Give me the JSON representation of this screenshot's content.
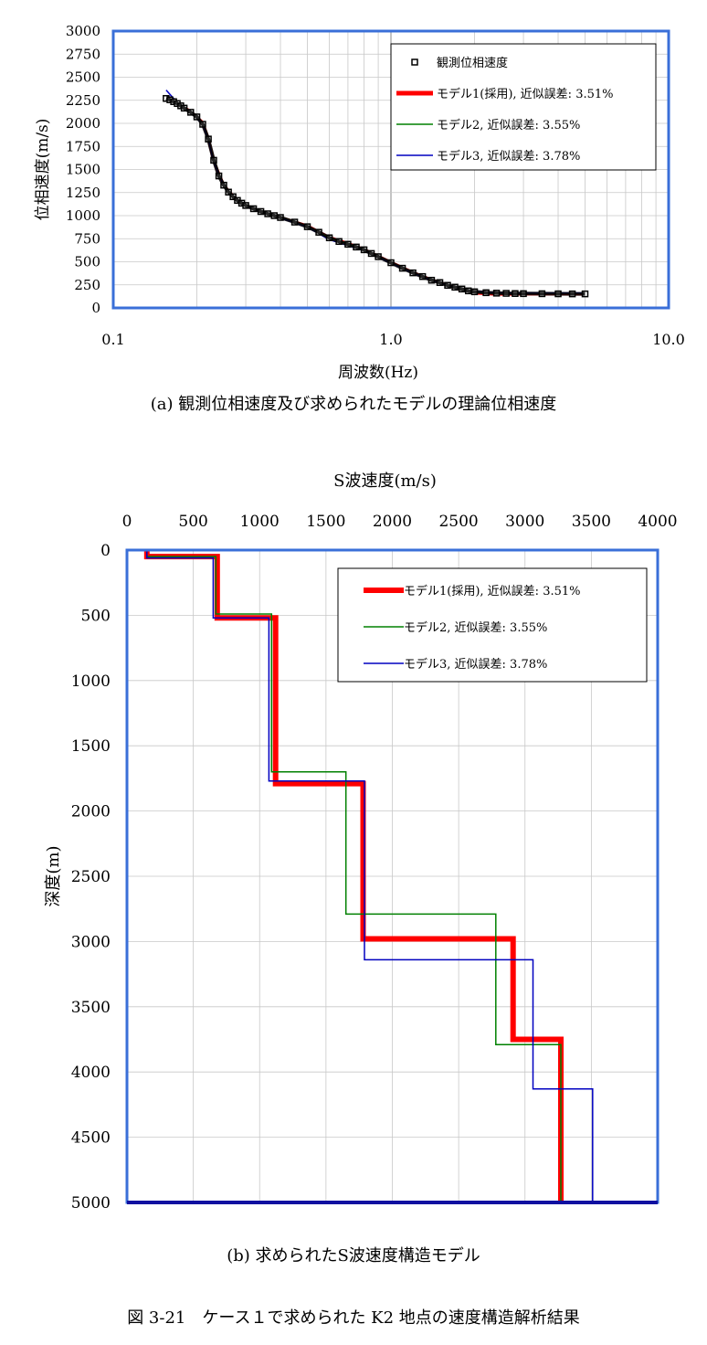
{
  "figure_caption": "図 3-21　ケース１で求められた K2 地点の速度構造解析結果",
  "chart_data": [
    {
      "id": "a",
      "type": "scatter",
      "caption": "(a)  観測位相速度及び求められたモデルの理論位相速度",
      "xlabel": "周波数(Hz)",
      "ylabel": "位相速度(m/s)",
      "xscale": "log",
      "xlim": [
        0.1,
        10.0
      ],
      "ylim": [
        0,
        3000
      ],
      "xticks": [
        "0.1",
        "1.0",
        "10.0"
      ],
      "yticks": [
        "0",
        "250",
        "500",
        "750",
        "1000",
        "1250",
        "1500",
        "1750",
        "2000",
        "2250",
        "2500",
        "2750",
        "3000"
      ],
      "grid": true,
      "legend_position": "top-right",
      "series": [
        {
          "name": "観測位相速度",
          "kind": "markers",
          "color": "#000000",
          "x": [
            0.155,
            0.16,
            0.165,
            0.17,
            0.175,
            0.18,
            0.19,
            0.2,
            0.21,
            0.22,
            0.23,
            0.24,
            0.25,
            0.26,
            0.27,
            0.28,
            0.29,
            0.3,
            0.32,
            0.34,
            0.36,
            0.38,
            0.4,
            0.45,
            0.5,
            0.55,
            0.6,
            0.65,
            0.7,
            0.75,
            0.8,
            0.85,
            0.9,
            1.0,
            1.1,
            1.2,
            1.3,
            1.4,
            1.5,
            1.6,
            1.7,
            1.8,
            1.9,
            2.0,
            2.2,
            2.4,
            2.6,
            2.8,
            3.0,
            3.5,
            4.0,
            4.5,
            5.0
          ],
          "y": [
            2270,
            2255,
            2235,
            2215,
            2190,
            2165,
            2120,
            2070,
            1990,
            1830,
            1600,
            1430,
            1330,
            1255,
            1205,
            1165,
            1135,
            1110,
            1075,
            1045,
            1020,
            1000,
            980,
            930,
            880,
            820,
            760,
            720,
            690,
            660,
            630,
            590,
            555,
            490,
            430,
            380,
            340,
            300,
            275,
            245,
            225,
            205,
            185,
            175,
            165,
            160,
            158,
            156,
            155,
            154,
            153,
            152,
            152
          ]
        },
        {
          "name": "モデル1(採用), 近似誤差: 3.51%",
          "kind": "line",
          "color": "#ff0000",
          "x": [
            0.155,
            0.17,
            0.19,
            0.21,
            0.22,
            0.23,
            0.25,
            0.28,
            0.32,
            0.4,
            0.5,
            0.6,
            0.7,
            0.8,
            1.0,
            1.2,
            1.4,
            1.6,
            1.8,
            2.0,
            2.3,
            2.6,
            3.0,
            4.0,
            5.0
          ],
          "y": [
            2290,
            2220,
            2130,
            2010,
            1830,
            1590,
            1330,
            1160,
            1070,
            980,
            890,
            765,
            700,
            635,
            495,
            385,
            305,
            245,
            190,
            160,
            150,
            148,
            150,
            150,
            150
          ]
        },
        {
          "name": "モデル2, 近似誤差: 3.55%",
          "kind": "line",
          "color": "#008000",
          "x": [
            0.155,
            0.17,
            0.19,
            0.21,
            0.22,
            0.23,
            0.25,
            0.28,
            0.32,
            0.4,
            0.5,
            0.6,
            0.7,
            0.8,
            1.0,
            1.2,
            1.4,
            1.6,
            1.8,
            2.0,
            2.3,
            2.6,
            3.0,
            4.0,
            5.0
          ],
          "y": [
            2300,
            2215,
            2125,
            2000,
            1835,
            1600,
            1335,
            1165,
            1075,
            985,
            880,
            760,
            695,
            630,
            490,
            380,
            300,
            240,
            195,
            170,
            160,
            158,
            158,
            158,
            158
          ]
        },
        {
          "name": "モデル3, 近似誤差: 3.78%",
          "kind": "line",
          "color": "#0000c0",
          "x": [
            0.155,
            0.17,
            0.19,
            0.21,
            0.22,
            0.23,
            0.25,
            0.28,
            0.32,
            0.4,
            0.5,
            0.6,
            0.7,
            0.8,
            1.0,
            1.2,
            1.4,
            1.6,
            1.8,
            2.0,
            2.3,
            2.6,
            3.0,
            4.0,
            5.0
          ],
          "y": [
            2360,
            2225,
            2120,
            1990,
            1820,
            1580,
            1325,
            1155,
            1065,
            975,
            875,
            740,
            675,
            620,
            485,
            375,
            300,
            245,
            205,
            180,
            168,
            163,
            162,
            162,
            162
          ]
        }
      ]
    },
    {
      "id": "b",
      "type": "line",
      "caption": "(b)  求められたS波速度構造モデル",
      "xlabel": "S波速度(m/s)",
      "ylabel": "深度(m)",
      "xlim": [
        0,
        4000
      ],
      "ylim": [
        0,
        5000
      ],
      "y_inverted": true,
      "xaxis_position": "top",
      "xticks": [
        "0",
        "500",
        "1000",
        "1500",
        "2000",
        "2500",
        "3000",
        "3500",
        "4000"
      ],
      "yticks": [
        "0",
        "500",
        "1000",
        "1500",
        "2000",
        "2500",
        "3000",
        "3500",
        "4000",
        "4500",
        "5000"
      ],
      "grid": true,
      "legend_position": "top-right",
      "series": [
        {
          "name": "モデル1(採用), 近似誤差: 3.51%",
          "color": "#ff0000",
          "vs": [
            150,
            680,
            1120,
            1780,
            2910,
            3270
          ],
          "depth_bottoms": [
            50,
            520,
            1790,
            2980,
            3750,
            5000
          ]
        },
        {
          "name": "モデル2, 近似誤差: 3.55%",
          "color": "#008000",
          "vs": [
            150,
            670,
            1090,
            1650,
            2780,
            3270
          ],
          "depth_bottoms": [
            50,
            490,
            1700,
            2790,
            3790,
            5000
          ]
        },
        {
          "name": "モデル3, 近似誤差: 3.78%",
          "color": "#0000c0",
          "vs": [
            150,
            650,
            1070,
            1790,
            3060,
            3510
          ],
          "depth_bottoms": [
            60,
            520,
            1770,
            3140,
            4130,
            5000
          ]
        }
      ]
    }
  ]
}
